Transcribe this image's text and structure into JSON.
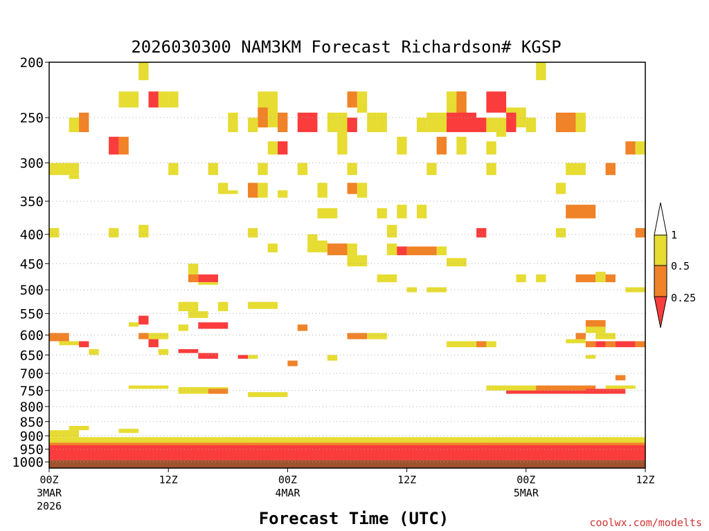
{
  "chart_data": {
    "type": "heatmap",
    "title": "2026030300 NAM3KM Forecast Richardson# KGSP",
    "xlabel": "Forecast Time (UTC)",
    "ylabel": "",
    "credit": "coolwx.com/modelts",
    "x_range_hours": [
      0,
      60
    ],
    "y_range_hpa": [
      200,
      1025
    ],
    "y_scale": "log-pressure",
    "y_ticks": [
      "200",
      "250",
      "300",
      "350",
      "400",
      "450",
      "500",
      "550",
      "600",
      "650",
      "700",
      "750",
      "800",
      "850",
      "900",
      "950",
      "1000"
    ],
    "gridlines": "dotted at each pressure tick",
    "x_ticks": [
      {
        "hour": 0,
        "label": "00Z",
        "date": "3MAR",
        "year": "2026"
      },
      {
        "hour": 12,
        "label": "12Z",
        "date": "",
        "year": ""
      },
      {
        "hour": 24,
        "label": "00Z",
        "date": "4MAR",
        "year": ""
      },
      {
        "hour": 36,
        "label": "12Z",
        "date": "",
        "year": ""
      },
      {
        "hour": 48,
        "label": "00Z",
        "date": "5MAR",
        "year": ""
      },
      {
        "hour": 60,
        "label": "12Z",
        "date": "",
        "year": ""
      }
    ],
    "legend": {
      "placement": "right",
      "labels": [
        "1",
        "0.5",
        "0.25"
      ],
      "bins": [
        {
          "range": "0.5-1",
          "color": "#e6dc32"
        },
        {
          "range": "0.25-0.5",
          "color": "#f08228"
        },
        {
          "range": "<0.25",
          "color": "#fa3c3c"
        }
      ]
    },
    "colors": {
      "low": "#fa3c3c",
      "mid": "#f08228",
      "high": "#e6dc32",
      "ground": "#a0522d"
    },
    "ground": {
      "from_hpa": 993,
      "to_hpa": 1025
    },
    "cells": [
      [
        9,
        10,
        200,
        215,
        "high"
      ],
      [
        49,
        50,
        200,
        215,
        "high"
      ],
      [
        7,
        9,
        225,
        240,
        "high"
      ],
      [
        10,
        11,
        225,
        240,
        "red"
      ],
      [
        11,
        12,
        225,
        240,
        "high"
      ],
      [
        12,
        13,
        225,
        240,
        "high"
      ],
      [
        21,
        23,
        225,
        260,
        "high"
      ],
      [
        21,
        22,
        240,
        260,
        "mid"
      ],
      [
        30,
        31,
        225,
        240,
        "mid"
      ],
      [
        31,
        32,
        225,
        245,
        "high"
      ],
      [
        40,
        42,
        225,
        245,
        "high"
      ],
      [
        41,
        42,
        225,
        260,
        "mid"
      ],
      [
        40,
        43,
        245,
        260,
        "red"
      ],
      [
        44,
        46,
        225,
        245,
        "red"
      ],
      [
        46,
        48,
        240,
        260,
        "high"
      ],
      [
        38,
        40,
        245,
        265,
        "high"
      ],
      [
        40,
        44,
        250,
        265,
        "red"
      ],
      [
        45,
        46,
        250,
        270,
        "high"
      ],
      [
        2,
        3,
        250,
        265,
        "high"
      ],
      [
        3,
        4,
        245,
        265,
        "mid"
      ],
      [
        18,
        19,
        245,
        265,
        "high"
      ],
      [
        20,
        21,
        250,
        265,
        "high"
      ],
      [
        23,
        24,
        245,
        265,
        "mid"
      ],
      [
        25,
        27,
        245,
        265,
        "red"
      ],
      [
        28,
        29,
        245,
        265,
        "high"
      ],
      [
        29,
        30,
        245,
        265,
        "high"
      ],
      [
        30,
        31,
        250,
        265,
        "red"
      ],
      [
        32,
        33,
        245,
        265,
        "high"
      ],
      [
        33,
        34,
        245,
        265,
        "high"
      ],
      [
        37,
        38,
        250,
        265,
        "high"
      ],
      [
        44,
        45,
        250,
        265,
        "high"
      ],
      [
        46,
        47,
        245,
        265,
        "red"
      ],
      [
        48,
        49,
        250,
        265,
        "high"
      ],
      [
        51,
        53,
        245,
        265,
        "mid"
      ],
      [
        53,
        54,
        245,
        265,
        "high"
      ],
      [
        6,
        7,
        270,
        290,
        "red"
      ],
      [
        7,
        8,
        270,
        290,
        "mid"
      ],
      [
        22,
        23,
        275,
        290,
        "high"
      ],
      [
        23,
        24,
        275,
        290,
        "red"
      ],
      [
        29,
        30,
        265,
        290,
        "high"
      ],
      [
        35,
        36,
        270,
        290,
        "high"
      ],
      [
        39,
        40,
        270,
        290,
        "mid"
      ],
      [
        41,
        42,
        270,
        290,
        "high"
      ],
      [
        44,
        45,
        275,
        290,
        "high"
      ],
      [
        58,
        59,
        275,
        290,
        "mid"
      ],
      [
        59,
        60,
        275,
        290,
        "high"
      ],
      [
        0,
        3,
        300,
        315,
        "high"
      ],
      [
        2,
        3,
        315,
        320,
        "high"
      ],
      [
        12,
        13,
        300,
        315,
        "high"
      ],
      [
        16,
        17,
        300,
        315,
        "high"
      ],
      [
        21,
        22,
        300,
        315,
        "high"
      ],
      [
        25,
        26,
        300,
        315,
        "high"
      ],
      [
        30,
        31,
        300,
        315,
        "high"
      ],
      [
        38,
        39,
        300,
        315,
        "high"
      ],
      [
        44,
        45,
        300,
        315,
        "high"
      ],
      [
        52,
        54,
        300,
        315,
        "high"
      ],
      [
        56,
        57,
        300,
        315,
        "mid"
      ],
      [
        17,
        18,
        325,
        340,
        "high"
      ],
      [
        18,
        19,
        335,
        340,
        "high"
      ],
      [
        20,
        21,
        325,
        345,
        "mid"
      ],
      [
        21,
        22,
        325,
        345,
        "high"
      ],
      [
        23,
        24,
        335,
        345,
        "high"
      ],
      [
        27,
        28,
        325,
        345,
        "high"
      ],
      [
        30,
        31,
        325,
        340,
        "mid"
      ],
      [
        31,
        32,
        325,
        345,
        "high"
      ],
      [
        51,
        52,
        325,
        340,
        "high"
      ],
      [
        27,
        29,
        360,
        375,
        "high"
      ],
      [
        33,
        34,
        360,
        375,
        "high"
      ],
      [
        35,
        36,
        355,
        375,
        "high"
      ],
      [
        37,
        38,
        355,
        375,
        "high"
      ],
      [
        52,
        55,
        355,
        375,
        "mid"
      ],
      [
        0,
        1,
        390,
        405,
        "high"
      ],
      [
        6,
        7,
        390,
        405,
        "high"
      ],
      [
        9,
        10,
        385,
        405,
        "high"
      ],
      [
        20,
        21,
        390,
        405,
        "high"
      ],
      [
        26,
        27,
        400,
        410,
        "high"
      ],
      [
        34,
        35,
        385,
        405,
        "high"
      ],
      [
        43,
        44,
        390,
        405,
        "red"
      ],
      [
        51,
        52,
        390,
        405,
        "high"
      ],
      [
        59,
        60,
        390,
        405,
        "mid"
      ],
      [
        22,
        23,
        415,
        430,
        "high"
      ],
      [
        26,
        28,
        410,
        430,
        "high"
      ],
      [
        28,
        30,
        415,
        435,
        "mid"
      ],
      [
        30,
        31,
        415,
        435,
        "high"
      ],
      [
        34,
        35,
        415,
        435,
        "high"
      ],
      [
        35,
        36,
        420,
        435,
        "red"
      ],
      [
        36,
        39,
        420,
        435,
        "mid"
      ],
      [
        39,
        40,
        420,
        435,
        "high"
      ],
      [
        30,
        32,
        435,
        455,
        "high"
      ],
      [
        40,
        42,
        440,
        455,
        "high"
      ],
      [
        14,
        15,
        450,
        470,
        "high"
      ],
      [
        14,
        15,
        470,
        485,
        "mid"
      ],
      [
        15,
        17,
        470,
        485,
        "red"
      ],
      [
        15,
        17,
        485,
        490,
        "high"
      ],
      [
        33,
        35,
        470,
        485,
        "high"
      ],
      [
        47,
        48,
        470,
        485,
        "high"
      ],
      [
        49,
        50,
        470,
        485,
        "high"
      ],
      [
        53,
        55,
        470,
        485,
        "mid"
      ],
      [
        55,
        56,
        465,
        485,
        "high"
      ],
      [
        56,
        57,
        470,
        485,
        "mid"
      ],
      [
        36,
        37,
        495,
        505,
        "high"
      ],
      [
        38,
        40,
        495,
        505,
        "high"
      ],
      [
        58,
        60,
        495,
        505,
        "high"
      ],
      [
        13,
        15,
        525,
        545,
        "high"
      ],
      [
        14,
        16,
        545,
        560,
        "high"
      ],
      [
        17,
        18,
        525,
        545,
        "high"
      ],
      [
        20,
        23,
        525,
        540,
        "high"
      ],
      [
        9,
        10,
        555,
        575,
        "red"
      ],
      [
        8,
        9,
        570,
        580,
        "high"
      ],
      [
        13,
        14,
        575,
        590,
        "high"
      ],
      [
        15,
        18,
        570,
        585,
        "red"
      ],
      [
        25,
        26,
        575,
        590,
        "mid"
      ],
      [
        54,
        56,
        565,
        580,
        "mid"
      ],
      [
        54,
        56,
        580,
        595,
        "high"
      ],
      [
        0,
        2,
        595,
        615,
        "mid"
      ],
      [
        1,
        3,
        615,
        625,
        "high"
      ],
      [
        3,
        4,
        615,
        630,
        "red"
      ],
      [
        9,
        10,
        595,
        610,
        "mid"
      ],
      [
        10,
        12,
        595,
        610,
        "high"
      ],
      [
        10,
        11,
        610,
        630,
        "red"
      ],
      [
        30,
        32,
        595,
        610,
        "mid"
      ],
      [
        32,
        34,
        595,
        610,
        "high"
      ],
      [
        53,
        54,
        595,
        610,
        "mid"
      ],
      [
        52,
        54,
        610,
        620,
        "high"
      ],
      [
        55,
        57,
        595,
        610,
        "high"
      ],
      [
        54,
        55,
        615,
        630,
        "mid"
      ],
      [
        55,
        56,
        615,
        630,
        "red"
      ],
      [
        56,
        57,
        615,
        630,
        "mid"
      ],
      [
        57,
        59,
        615,
        630,
        "red"
      ],
      [
        59,
        60,
        615,
        630,
        "mid"
      ],
      [
        4,
        5,
        635,
        650,
        "high"
      ],
      [
        11,
        12,
        635,
        650,
        "high"
      ],
      [
        13,
        15,
        635,
        645,
        "red"
      ],
      [
        15,
        17,
        645,
        660,
        "red"
      ],
      [
        19,
        20,
        650,
        660,
        "red"
      ],
      [
        20,
        21,
        650,
        660,
        "high"
      ],
      [
        24,
        25,
        665,
        680,
        "mid"
      ],
      [
        28,
        29,
        650,
        665,
        "high"
      ],
      [
        54,
        55,
        650,
        660,
        "high"
      ],
      [
        57,
        58,
        705,
        720,
        "mid"
      ],
      [
        40,
        43,
        615,
        630,
        "high"
      ],
      [
        43,
        44,
        615,
        630,
        "mid"
      ],
      [
        44,
        45,
        615,
        630,
        "high"
      ]
    ],
    "bands": [
      [
        0,
        60,
        935,
        993,
        "red"
      ],
      [
        0,
        60,
        925,
        935,
        "mid"
      ],
      [
        0,
        60,
        905,
        925,
        "high"
      ],
      [
        0,
        3,
        880,
        905,
        "high"
      ],
      [
        2,
        4,
        865,
        880,
        "high"
      ],
      [
        7,
        9,
        875,
        890,
        "high"
      ],
      [
        46,
        56,
        745,
        760,
        "red"
      ],
      [
        44,
        49,
        735,
        750,
        "high"
      ],
      [
        49,
        55,
        735,
        750,
        "mid"
      ],
      [
        54,
        58,
        745,
        760,
        "red"
      ],
      [
        56,
        59,
        735,
        745,
        "high"
      ],
      [
        8,
        12,
        735,
        745,
        "high"
      ],
      [
        13,
        18,
        740,
        760,
        "high"
      ],
      [
        16,
        18,
        745,
        760,
        "mid"
      ],
      [
        20,
        24,
        755,
        770,
        "high"
      ]
    ]
  }
}
